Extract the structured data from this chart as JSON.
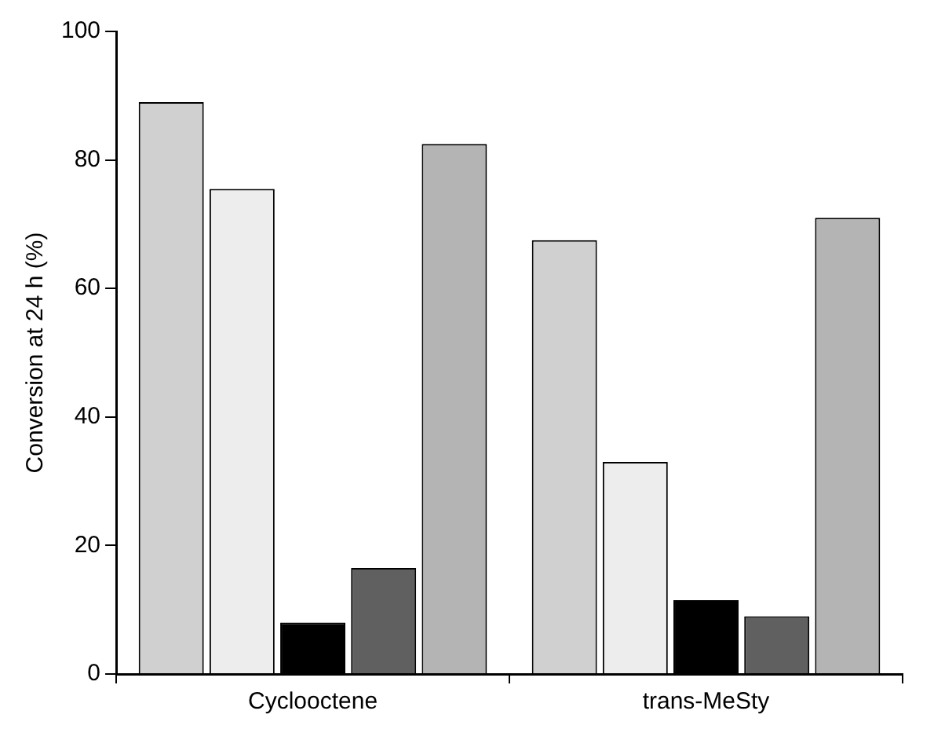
{
  "chart_data": {
    "type": "bar",
    "ylabel": "Conversion at 24 h (%)",
    "categories": [
      "Cyclooctene",
      "trans-MeSty"
    ],
    "series": [
      {
        "color": "#d0d0d0",
        "values": [
          89,
          67.5
        ]
      },
      {
        "color": "#ededed",
        "values": [
          75.5,
          33
        ]
      },
      {
        "color": "#000000",
        "values": [
          8,
          11.5
        ]
      },
      {
        "color": "#606060",
        "values": [
          16.5,
          9
        ]
      },
      {
        "color": "#b4b4b4",
        "values": [
          82.5,
          71
        ]
      }
    ],
    "ylim": [
      0,
      100
    ],
    "yticks": [
      0,
      20,
      40,
      60,
      80,
      100
    ],
    "grid": false,
    "legend": false
  }
}
